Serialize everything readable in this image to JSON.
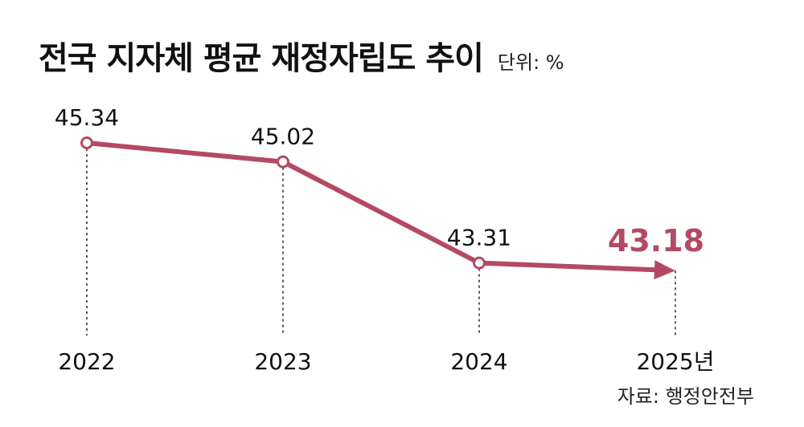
{
  "header": {
    "title": "전국 지자체 평균 재정자립도 추이",
    "unit": "단위: %"
  },
  "source": "자료: 행정안전부",
  "colors": {
    "line": "#b44a62",
    "highlight": "#b44a62",
    "text": "#111111",
    "guide": "#222222"
  },
  "chart_data": {
    "type": "line",
    "categories": [
      "2022",
      "2023",
      "2024",
      "2025년"
    ],
    "series": [
      {
        "values": [
          45.34,
          45.02,
          43.31,
          43.18
        ]
      }
    ],
    "data_labels": [
      "45.34",
      "45.02",
      "43.31",
      "43.18"
    ],
    "xlabel": "",
    "ylabel": "",
    "grid": false,
    "legend": "none",
    "last_point_arrow": true
  }
}
